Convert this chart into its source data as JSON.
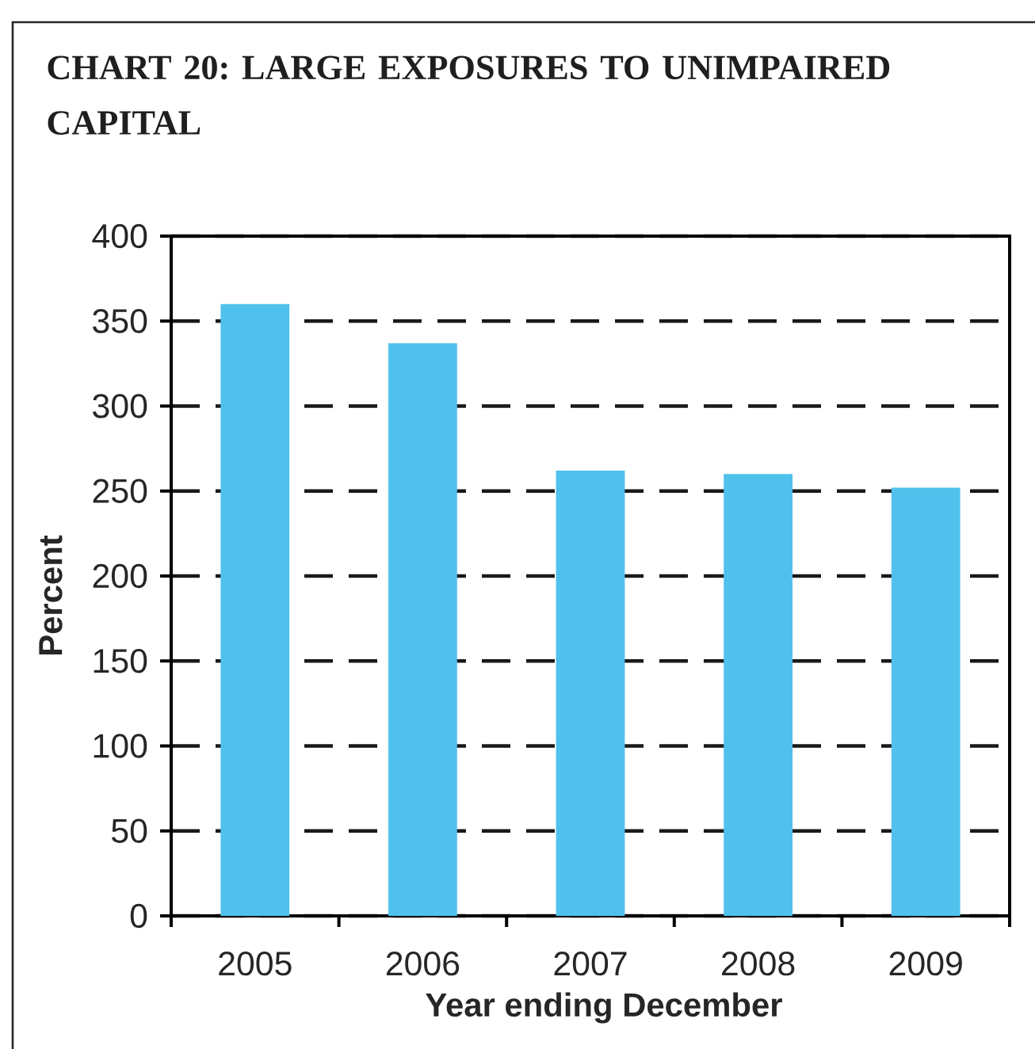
{
  "chart_data": {
    "type": "bar",
    "title": "CHART 20: LARGE EXPOSURES TO UNIMPAIRED CAPITAL",
    "xlabel": "Year ending December",
    "ylabel": "Percent",
    "categories": [
      "2005",
      "2006",
      "2007",
      "2008",
      "2009"
    ],
    "values": [
      360,
      337,
      262,
      260,
      252
    ],
    "color": "#50c1ec",
    "ylim": [
      0,
      400
    ],
    "yticks": [
      0,
      50,
      100,
      150,
      200,
      250,
      300,
      350,
      400
    ],
    "grid": "y"
  }
}
